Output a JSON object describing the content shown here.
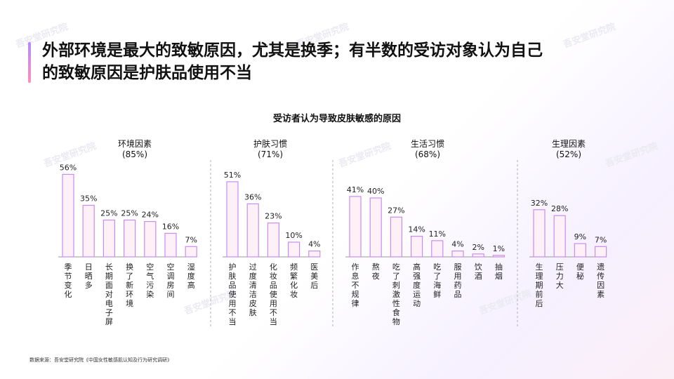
{
  "headline": {
    "line1": "外部环境是最大的致敏原因，尤其是换季；有半数的受访对象认为自己",
    "line2": "的致敏原因是护肤品使用不当"
  },
  "source": "数据来源：吾安堂研究院《中国女性敏感肌认知及行为研究调研》",
  "colors": {
    "bar_fill": "#fdf0f6",
    "bar_stroke": "#c98cf0",
    "divider": "#b0b0b0",
    "axis": "#999999"
  },
  "chart_data": {
    "type": "bar",
    "title": "受访者认为导致皮肤敏感的原因",
    "unit": "%",
    "ylim": [
      0,
      60
    ],
    "groups": [
      {
        "name": "环境因素",
        "total": "(85%)",
        "categories": [
          "季节变化",
          "日晒多",
          "长期面对电子屏",
          "换了新环境",
          "空气污染",
          "空调房间",
          "湿度高"
        ],
        "values": [
          56,
          35,
          25,
          25,
          24,
          16,
          7
        ]
      },
      {
        "name": "护肤习惯",
        "total": "(71%)",
        "categories": [
          "护肤品使用不当",
          "过度清洁皮肤",
          "化妆品使用不当",
          "频繁化妆",
          "医美后"
        ],
        "values": [
          51,
          36,
          23,
          10,
          4
        ]
      },
      {
        "name": "生活习惯",
        "total": "(68%)",
        "categories": [
          "作息不规律",
          "熬夜",
          "吃了刺激性食物",
          "高强度运动",
          "吃了海鲜",
          "服用药品",
          "饮酒",
          "抽烟"
        ],
        "values": [
          41,
          40,
          27,
          14,
          11,
          4,
          2,
          1
        ]
      },
      {
        "name": "生理因素",
        "total": "(52%)",
        "categories": [
          "生理期前后",
          "压力大",
          "便秘",
          "遗传因素"
        ],
        "values": [
          32,
          28,
          9,
          7
        ]
      }
    ]
  }
}
